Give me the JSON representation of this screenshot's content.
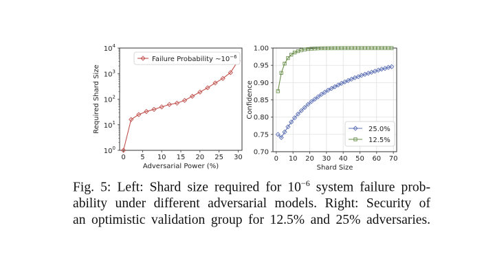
{
  "chart_data": [
    {
      "type": "line",
      "yscale": "log",
      "xlabel": "Adversarial Power (%)",
      "ylabel": "Required Shard Size",
      "xlim": [
        -1,
        31
      ],
      "ylim": [
        1,
        10000
      ],
      "xticks": [
        0,
        5,
        10,
        15,
        20,
        25,
        30
      ],
      "yticks": [
        {
          "value": 1,
          "base": "10",
          "exp": "0"
        },
        {
          "value": 10,
          "base": "10",
          "exp": "1"
        },
        {
          "value": 100,
          "base": "10",
          "exp": "2"
        },
        {
          "value": 1000,
          "base": "10",
          "exp": "3"
        },
        {
          "value": 10000,
          "base": "10",
          "exp": "4"
        }
      ],
      "legend": {
        "location": "top",
        "entries": [
          {
            "label": "Failure Probability ~10",
            "sup": "−6"
          }
        ]
      },
      "series": [
        {
          "name": "Failure Probability ~10^-6",
          "color": "#c0504d",
          "marker": "diamond",
          "x": [
            0,
            2,
            4,
            6,
            8,
            10,
            12,
            14,
            16,
            18,
            20,
            22,
            24,
            26,
            28,
            30
          ],
          "y": [
            1,
            16,
            25,
            33,
            40,
            50,
            62,
            70,
            90,
            130,
            190,
            280,
            430,
            650,
            1100,
            3200
          ]
        }
      ]
    },
    {
      "type": "line",
      "xlabel": "Shard Size",
      "ylabel": "Confidence",
      "xlim": [
        -2,
        72
      ],
      "ylim": [
        0.7,
        1.0
      ],
      "xticks": [
        0,
        10,
        20,
        30,
        40,
        50,
        60,
        70
      ],
      "yticks": [
        "0.70",
        "0.75",
        "0.80",
        "0.85",
        "0.90",
        "0.95",
        "1.00"
      ],
      "grid": true,
      "legend": {
        "location": "bottom-right",
        "entries": [
          {
            "label": "25.0%"
          },
          {
            "label": "12.5%"
          }
        ]
      },
      "series": [
        {
          "name": "25.0%",
          "color": "#5b6fb5",
          "marker": "diamond",
          "x": [
            1,
            3,
            5,
            7,
            9,
            11,
            13,
            15,
            17,
            19,
            21,
            23,
            25,
            27,
            29,
            31,
            33,
            35,
            37,
            39,
            41,
            43,
            45,
            47,
            49,
            51,
            53,
            55,
            57,
            59,
            61,
            63,
            65,
            67,
            69
          ],
          "y": [
            0.75,
            0.741,
            0.757,
            0.772,
            0.786,
            0.798,
            0.809,
            0.819,
            0.828,
            0.837,
            0.845,
            0.852,
            0.859,
            0.866,
            0.872,
            0.878,
            0.883,
            0.888,
            0.893,
            0.898,
            0.902,
            0.906,
            0.91,
            0.914,
            0.917,
            0.921,
            0.924,
            0.927,
            0.93,
            0.933,
            0.936,
            0.939,
            0.941,
            0.944,
            0.946
          ]
        },
        {
          "name": "12.5%",
          "color": "#6a8f4c",
          "marker": "square",
          "x": [
            1,
            3,
            5,
            7,
            9,
            11,
            13,
            15,
            17,
            19,
            21,
            23,
            25,
            27,
            29,
            31,
            33,
            35,
            37,
            39,
            41,
            43,
            45,
            47,
            49,
            51,
            53,
            55,
            57,
            59,
            61,
            63,
            65,
            67,
            69
          ],
          "y": [
            0.875,
            0.928,
            0.955,
            0.971,
            0.981,
            0.987,
            0.991,
            0.994,
            0.996,
            0.997,
            0.998,
            0.9985,
            0.999,
            0.9993,
            0.9995,
            0.9996,
            0.9997,
            0.9998,
            0.9998,
            0.9999,
            0.9999,
            0.9999,
            1.0,
            1.0,
            1.0,
            1.0,
            1.0,
            1.0,
            1.0,
            1.0,
            1.0,
            1.0,
            1.0,
            1.0,
            1.0
          ]
        }
      ]
    }
  ],
  "caption": {
    "fig_label": "Fig. 5:",
    "line1_pre": "Left: Shard size required for 10",
    "line1_sup": "−6",
    "line1_post": "system failure prob-",
    "line2": "ability under different adversarial models. Right: Security of",
    "line3": "an optimistic validation group for 12.5% and 25% adversaries."
  }
}
